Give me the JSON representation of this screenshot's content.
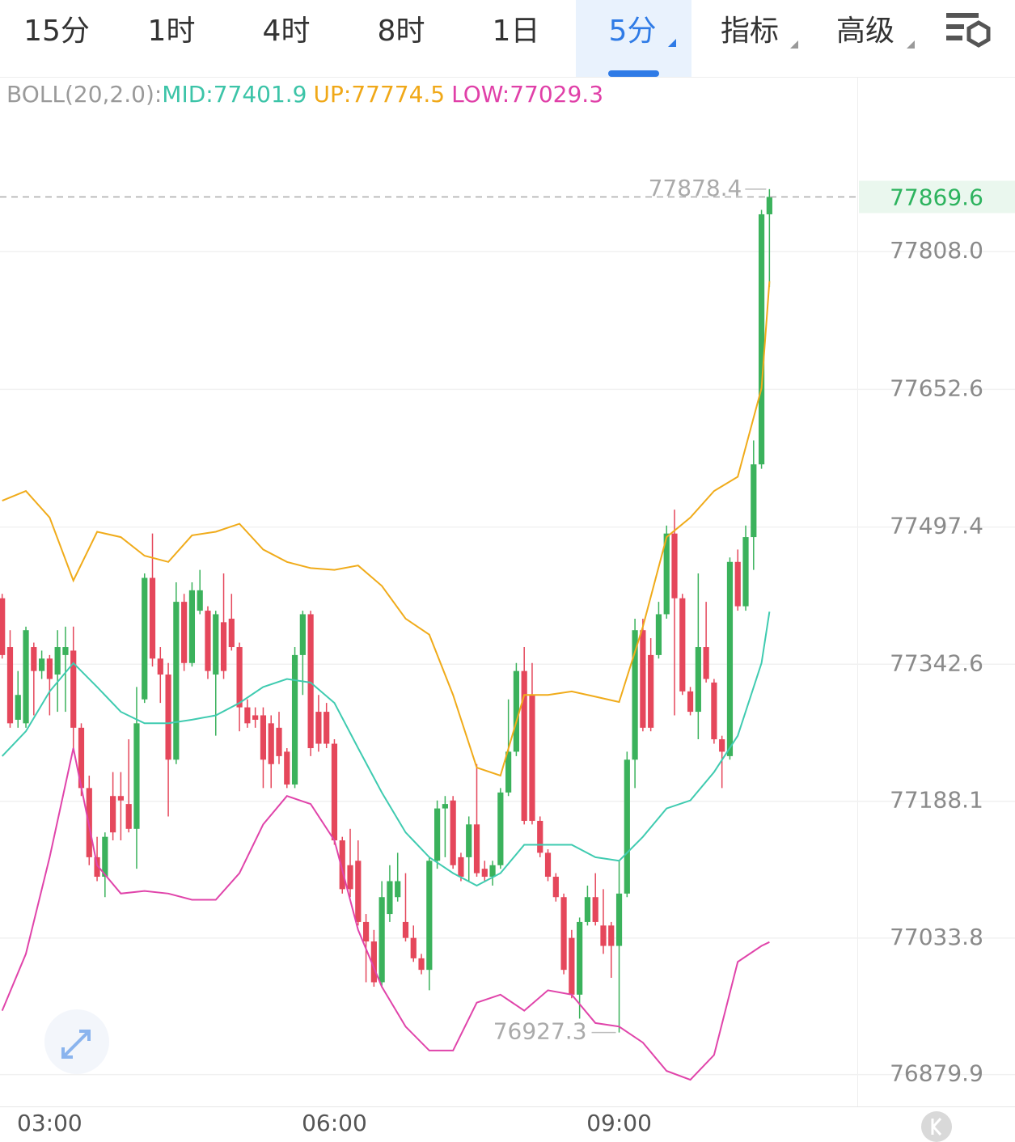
{
  "tabs": [
    "15分",
    "1时",
    "4时",
    "8时",
    "1日",
    "5分",
    "指标",
    "高级"
  ],
  "active_tab": 5,
  "indicator": {
    "name": "BOLL(20,2.0):",
    "mid": "MID:77401.9",
    "up": "UP:77774.5",
    "low": "LOW:77029.3"
  },
  "chart_data": {
    "type": "candlestick",
    "up_color": "#3bb25c",
    "down_color": "#e5475b",
    "ylim": [
      76844,
      78005
    ],
    "yticks": [
      {
        "value": 77808,
        "label": "77808.0"
      },
      77652.6,
      77497.4,
      77342.6,
      77188.1,
      77033.8,
      76879.9
    ],
    "grid": true,
    "categories": [
      null,
      null,
      null,
      null,
      null,
      null,
      "03:00",
      null,
      null,
      null,
      null,
      null,
      null,
      null,
      null,
      null,
      null,
      null,
      null,
      null,
      null,
      null,
      null,
      null,
      null,
      null,
      null,
      null,
      null,
      null,
      null,
      null,
      null,
      null,
      null,
      null,
      null,
      null,
      null,
      null,
      null,
      null,
      "06:00",
      null,
      null,
      null,
      null,
      null,
      null,
      null,
      null,
      null,
      null,
      null,
      null,
      null,
      null,
      null,
      null,
      null,
      null,
      null,
      null,
      null,
      null,
      null,
      null,
      null,
      null,
      null,
      null,
      null,
      null,
      null,
      null,
      null,
      null,
      null,
      "09:00",
      null,
      null,
      null,
      null,
      null,
      null,
      null,
      null,
      null,
      null,
      null,
      null,
      null,
      null,
      null,
      null,
      null,
      null,
      null
    ],
    "open": [
      77417,
      77362,
      77280,
      77276,
      77362,
      77335,
      77349,
      77331,
      77353,
      77358,
      77271,
      77203,
      77125,
      77103,
      77194,
      77194,
      77185,
      77157,
      77303,
      77440,
      77349,
      77331,
      77235,
      77413,
      77344,
      77403,
      77403,
      77331,
      77390,
      77394,
      77362,
      77294,
      77285,
      77285,
      77276,
      77271,
      77244,
      77207,
      77353,
      77399,
      77289,
      77289,
      77253,
      77144,
      77116,
      77121,
      77052,
      77030,
      76984,
      77061,
      77080,
      77052,
      77034,
      77011,
      76998,
      77121,
      77180,
      77189,
      77125,
      77125,
      77162,
      77112,
      77103,
      77116,
      77198,
      77244,
      77335,
      77308,
      77166,
      77130,
      77103,
      77080,
      77034,
      76970,
      77052,
      77080,
      77048,
      77048,
      77025,
      77084,
      77235,
      77381,
      77353,
      77353,
      77399,
      77490,
      77417,
      77312,
      77289,
      77362,
      77322,
      77258,
      77239,
      77458,
      77408,
      77486,
      77568,
      77850
    ],
    "close": [
      77353,
      77276,
      77308,
      77381,
      77335,
      77349,
      77326,
      77362,
      77362,
      77271,
      77203,
      77125,
      77103,
      77148,
      77153,
      77189,
      77157,
      77276,
      77440,
      77349,
      77331,
      77235,
      77413,
      77344,
      77426,
      77426,
      77335,
      77399,
      77335,
      77362,
      77294,
      77276,
      77280,
      77235,
      77230,
      77239,
      77207,
      77353,
      77399,
      77248,
      77253,
      77253,
      77144,
      77089,
      77089,
      77052,
      77030,
      76984,
      77080,
      77098,
      77098,
      77034,
      77011,
      76998,
      77121,
      77180,
      77185,
      77116,
      77103,
      77162,
      77107,
      77103,
      77116,
      77198,
      77244,
      77335,
      77166,
      77166,
      77130,
      77103,
      77080,
      76998,
      76970,
      77052,
      77080,
      77052,
      77025,
      77025,
      77084,
      77235,
      77381,
      77271,
      77271,
      77399,
      77490,
      77417,
      77312,
      77289,
      77362,
      77326,
      77258,
      77244,
      77458,
      77408,
      77486,
      77568,
      77850,
      77869.6
    ],
    "high": [
      77422,
      77381,
      77335,
      77385,
      77367,
      77358,
      77353,
      77381,
      77385,
      77385,
      77276,
      77217,
      77148,
      77153,
      77221,
      77221,
      77258,
      77317,
      77445,
      77490,
      77362,
      77344,
      77435,
      77422,
      77435,
      77449,
      77408,
      77403,
      77445,
      77422,
      77367,
      77303,
      77294,
      77294,
      77285,
      77289,
      77248,
      77362,
      77403,
      77403,
      77308,
      77299,
      77258,
      77148,
      77157,
      77144,
      77061,
      77043,
      77098,
      77116,
      77130,
      77107,
      77048,
      77016,
      77125,
      77189,
      77194,
      77194,
      77130,
      77171,
      77230,
      77121,
      77121,
      77203,
      77303,
      77344,
      77362,
      77344,
      77171,
      77134,
      77107,
      77084,
      77043,
      77057,
      77093,
      77107,
      77089,
      77052,
      77121,
      77244,
      77394,
      77394,
      77372,
      77413,
      77499,
      77517,
      77422,
      77317,
      77445,
      77413,
      77326,
      77262,
      77463,
      77472,
      77499,
      77595,
      77855,
      77878.4
    ],
    "low": [
      77349,
      77271,
      77271,
      77271,
      77285,
      77326,
      77285,
      77289,
      77289,
      77248,
      77194,
      77116,
      77098,
      77080,
      77144,
      77144,
      77153,
      77112,
      77299,
      77340,
      77299,
      77171,
      77230,
      77335,
      77340,
      77399,
      77326,
      77262,
      77326,
      77358,
      77267,
      77271,
      77271,
      77203,
      77203,
      77230,
      77203,
      77203,
      77308,
      77239,
      77244,
      77248,
      77139,
      77084,
      77080,
      77048,
      76984,
      76979,
      76979,
      77052,
      77075,
      77030,
      77007,
      76993,
      76975,
      77112,
      77125,
      77112,
      77098,
      77098,
      77103,
      77098,
      77093,
      77112,
      77194,
      77239,
      77162,
      77162,
      77125,
      77098,
      77075,
      76993,
      76966,
      76943,
      77048,
      77048,
      77016,
      76989,
      76927.3,
      77080,
      77203,
      77267,
      77267,
      77349,
      77394,
      77285,
      77308,
      77285,
      77258,
      77322,
      77253,
      77203,
      77235,
      77403,
      77403,
      77449,
      77563,
      77768
    ],
    "series": [
      {
        "color": "#f0ab1a",
        "x": [
          0,
          3,
          6,
          9,
          12,
          15,
          18,
          21,
          24,
          27,
          30,
          33,
          36,
          39,
          42,
          45,
          48,
          51,
          54,
          57,
          60,
          63,
          66,
          69,
          72,
          75,
          78,
          81,
          84,
          87,
          90,
          93,
          96,
          97
        ],
        "values": [
          77527,
          77538,
          77508,
          77437,
          77492,
          77486,
          77465,
          77458,
          77488,
          77492,
          77501,
          77472,
          77458,
          77451,
          77449,
          77454,
          77431,
          77394,
          77376,
          77308,
          77226,
          77217,
          77308,
          77308,
          77312,
          77306,
          77300,
          77385,
          77486,
          77508,
          77538,
          77554,
          77654,
          77774.5
        ]
      },
      {
        "color": "#3fcbb0",
        "x": [
          0,
          3,
          6,
          9,
          12,
          15,
          18,
          21,
          24,
          27,
          30,
          33,
          36,
          39,
          42,
          45,
          48,
          51,
          54,
          57,
          60,
          63,
          66,
          69,
          72,
          75,
          78,
          81,
          84,
          87,
          90,
          93,
          96,
          97
        ],
        "values": [
          77239,
          77267,
          77312,
          77344,
          77317,
          77289,
          77276,
          77276,
          77280,
          77285,
          77299,
          77317,
          77326,
          77322,
          77299,
          77248,
          77198,
          77153,
          77125,
          77107,
          77093,
          77107,
          77139,
          77139,
          77139,
          77125,
          77121,
          77148,
          77180,
          77189,
          77221,
          77262,
          77344,
          77401.9
        ]
      },
      {
        "color": "#e044aa",
        "x": [
          0,
          3,
          6,
          9,
          12,
          15,
          18,
          21,
          24,
          27,
          30,
          33,
          36,
          39,
          42,
          45,
          48,
          51,
          54,
          57,
          60,
          63,
          66,
          69,
          72,
          75,
          78,
          81,
          84,
          87,
          90,
          93,
          96,
          97
        ],
        "values": [
          76952,
          77016,
          77125,
          77248,
          77116,
          77084,
          77087,
          77084,
          77077,
          77077,
          77107,
          77162,
          77194,
          77185,
          77144,
          77043,
          76979,
          76934,
          76907,
          76907,
          76961,
          76970,
          76952,
          76975,
          76970,
          76938,
          76934,
          76916,
          76884,
          76874,
          76902,
          77007,
          77025,
          77029.3
        ]
      }
    ]
  }
}
